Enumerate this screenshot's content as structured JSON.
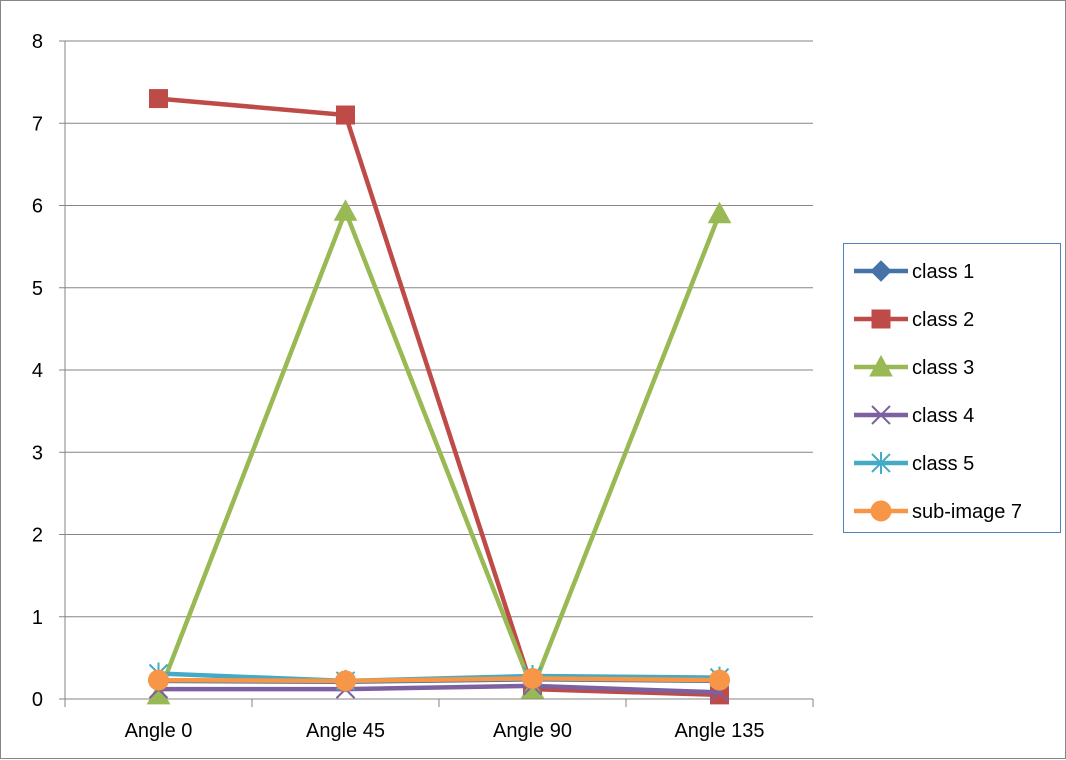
{
  "chart_data": {
    "type": "line",
    "title": "",
    "xlabel": "",
    "ylabel": "",
    "categories": [
      "Angle 0",
      "Angle 45",
      "Angle 90",
      "Angle 135"
    ],
    "ylim": [
      0,
      8
    ],
    "yticks": [
      0,
      1,
      2,
      3,
      4,
      5,
      6,
      7,
      8
    ],
    "grid": "horizontal",
    "legend_position": "right",
    "series": [
      {
        "name": "class 1",
        "color": "#4572a7",
        "marker": "diamond",
        "values": [
          0.22,
          0.21,
          0.24,
          0.22
        ]
      },
      {
        "name": "class 2",
        "color": "#be4b48",
        "marker": "square",
        "values": [
          7.3,
          7.1,
          0.12,
          0.05
        ]
      },
      {
        "name": "class 3",
        "color": "#98b954",
        "marker": "triangle",
        "values": [
          0.05,
          5.93,
          0.12,
          5.9
        ]
      },
      {
        "name": "class 4",
        "color": "#7d60a0",
        "marker": "x",
        "values": [
          0.12,
          0.12,
          0.16,
          0.08
        ]
      },
      {
        "name": "class 5",
        "color": "#46aac5",
        "marker": "star",
        "values": [
          0.31,
          0.22,
          0.28,
          0.26
        ]
      },
      {
        "name": "sub-image 7",
        "color": "#f79646",
        "marker": "circle",
        "values": [
          0.23,
          0.22,
          0.25,
          0.23
        ]
      }
    ]
  }
}
